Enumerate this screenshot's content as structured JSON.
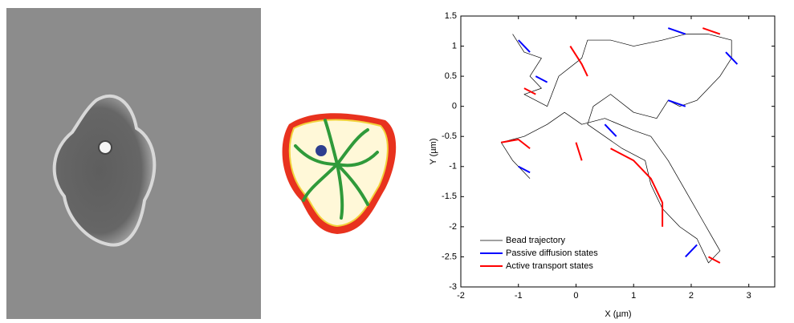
{
  "chart_data": {
    "type": "line",
    "xlabel": "X (µm)",
    "ylabel": "Y (µm)",
    "xlim": [
      -2,
      3.45
    ],
    "ylim": [
      -3,
      1.5
    ],
    "xticks": [
      -2,
      -1,
      0,
      1,
      2,
      3
    ],
    "yticks": [
      -3,
      -2.5,
      -2,
      -1.5,
      -1,
      -0.5,
      0,
      0.5,
      1,
      1.5
    ],
    "legend": "lower-left",
    "series": [
      {
        "name": "Bead trajectory",
        "color": "#000000",
        "x": [
          -1.1,
          -0.9,
          -0.6,
          -0.8,
          -0.6,
          -0.9,
          -0.5,
          -0.3,
          0.1,
          0.2,
          0.6,
          1.0,
          1.5,
          1.9,
          2.3,
          2.7,
          2.7,
          2.5,
          2.3,
          2.1,
          1.8,
          1.6,
          1.4,
          1.0,
          0.6,
          0.3,
          0.2,
          0.5,
          0.8,
          1.2,
          1.3,
          1.5,
          1.8,
          2.1,
          2.3,
          2.5,
          2.2,
          1.9,
          1.6,
          1.3,
          1.0,
          0.5,
          0.1,
          -0.2,
          -0.5,
          -0.9,
          -1.3,
          -1.1,
          -0.8
        ],
        "values": [
          1.2,
          0.9,
          0.8,
          0.5,
          0.3,
          0.2,
          0.0,
          0.5,
          0.8,
          1.1,
          1.1,
          1.0,
          1.1,
          1.2,
          1.2,
          1.1,
          0.8,
          0.5,
          0.3,
          0.1,
          0.0,
          0.1,
          -0.2,
          -0.1,
          0.2,
          0.0,
          -0.3,
          -0.5,
          -0.7,
          -0.9,
          -1.3,
          -1.7,
          -2.0,
          -2.2,
          -2.6,
          -2.4,
          -1.9,
          -1.4,
          -0.9,
          -0.5,
          -0.4,
          -0.2,
          -0.3,
          -0.1,
          -0.3,
          -0.5,
          -0.6,
          -0.9,
          -1.2
        ]
      },
      {
        "name": "Passive diffusion states",
        "color": "#0000ff",
        "x": [
          -1.0,
          -0.8,
          null,
          -0.7,
          -0.5,
          null,
          0.5,
          0.7,
          null,
          1.6,
          1.9,
          null,
          2.6,
          2.8,
          null,
          -1.0,
          -0.8,
          null,
          1.9,
          2.1,
          null,
          1.6,
          1.9
        ],
        "values": [
          1.1,
          0.9,
          null,
          0.5,
          0.4,
          null,
          -0.3,
          -0.5,
          null,
          0.1,
          0.0,
          null,
          0.9,
          0.7,
          null,
          -1.0,
          -1.1,
          null,
          -2.5,
          -2.3,
          null,
          1.3,
          1.2
        ]
      },
      {
        "name": "Active transport states",
        "color": "#ff0000",
        "x": [
          -1.3,
          -1.0,
          -0.8,
          null,
          0.0,
          0.1,
          null,
          0.6,
          1.0,
          1.3,
          1.5,
          1.5,
          null,
          2.3,
          2.5,
          null,
          -0.1,
          0.1,
          0.2,
          null,
          2.2,
          2.5,
          null,
          -0.9,
          -0.7
        ],
        "values": [
          -0.6,
          -0.55,
          -0.7,
          null,
          -0.6,
          -0.9,
          null,
          -0.7,
          -0.9,
          -1.2,
          -1.6,
          -2.0,
          null,
          -2.5,
          -2.6,
          null,
          1.0,
          0.7,
          0.5,
          null,
          1.3,
          1.2,
          null,
          0.3,
          0.2
        ]
      }
    ]
  }
}
